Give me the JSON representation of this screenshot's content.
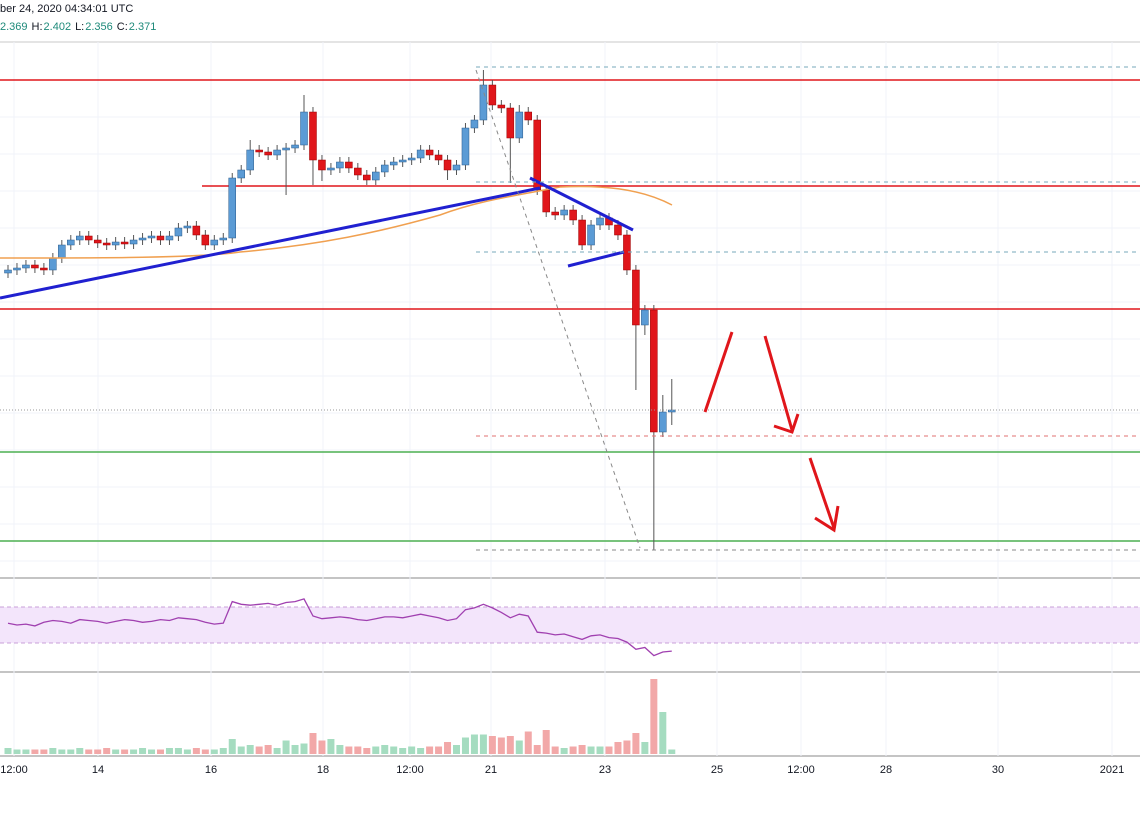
{
  "chart_data": {
    "type": "candlestick",
    "header": "ber 24, 2020 04:34:01 UTC",
    "ohlc_labels": [
      "H:",
      "L:",
      "C:"
    ],
    "open": [
      2.508,
      2.511,
      2.513,
      2.516,
      2.513,
      2.511,
      2.523,
      2.536,
      2.541,
      2.545,
      2.541,
      2.538,
      2.536,
      2.539,
      2.537,
      2.541,
      2.543,
      2.545,
      2.541,
      2.545,
      2.553,
      2.555,
      2.546,
      2.536,
      2.541,
      2.543,
      2.603,
      2.611,
      2.631,
      2.629,
      2.626,
      2.631,
      2.633,
      2.636,
      2.669,
      2.621,
      2.611,
      2.613,
      2.619,
      2.613,
      2.606,
      2.601,
      2.609,
      2.616,
      2.619,
      2.621,
      2.623,
      2.631,
      2.626,
      2.621,
      2.611,
      2.616,
      2.653,
      2.661,
      2.696,
      2.676,
      2.673,
      2.643,
      2.669,
      2.661,
      2.591,
      2.569,
      2.566,
      2.571,
      2.561,
      2.536,
      2.556,
      2.563,
      2.556,
      2.546,
      2.511,
      2.456,
      2.471,
      2.349,
      2.369
    ],
    "high": [
      2.516,
      2.518,
      2.521,
      2.521,
      2.518,
      2.528,
      2.541,
      2.546,
      2.55,
      2.55,
      2.546,
      2.543,
      2.544,
      2.544,
      2.546,
      2.548,
      2.55,
      2.55,
      2.55,
      2.558,
      2.56,
      2.56,
      2.551,
      2.546,
      2.548,
      2.608,
      2.616,
      2.641,
      2.636,
      2.634,
      2.636,
      2.638,
      2.641,
      2.686,
      2.674,
      2.626,
      2.618,
      2.624,
      2.624,
      2.618,
      2.611,
      2.614,
      2.621,
      2.624,
      2.626,
      2.628,
      2.636,
      2.636,
      2.631,
      2.626,
      2.621,
      2.658,
      2.666,
      2.711,
      2.701,
      2.681,
      2.678,
      2.676,
      2.674,
      2.666,
      2.596,
      2.574,
      2.576,
      2.576,
      2.566,
      2.561,
      2.568,
      2.568,
      2.561,
      2.551,
      2.516,
      2.476,
      2.476,
      2.386,
      2.402
    ],
    "low": [
      2.503,
      2.506,
      2.508,
      2.508,
      2.506,
      2.506,
      2.518,
      2.531,
      2.536,
      2.536,
      2.533,
      2.531,
      2.531,
      2.532,
      2.532,
      2.536,
      2.538,
      2.536,
      2.536,
      2.54,
      2.548,
      2.541,
      2.531,
      2.531,
      2.536,
      2.538,
      2.598,
      2.606,
      2.624,
      2.621,
      2.621,
      2.586,
      2.628,
      2.631,
      2.596,
      2.6,
      2.606,
      2.608,
      2.608,
      2.601,
      2.596,
      2.596,
      2.604,
      2.611,
      2.614,
      2.616,
      2.618,
      2.621,
      2.616,
      2.601,
      2.606,
      2.611,
      2.648,
      2.656,
      2.671,
      2.668,
      2.598,
      2.638,
      2.656,
      2.586,
      2.564,
      2.561,
      2.561,
      2.556,
      2.531,
      2.531,
      2.551,
      2.551,
      2.541,
      2.506,
      2.391,
      2.446,
      2.231,
      2.344,
      2.356
    ],
    "close": [
      2.511,
      2.513,
      2.516,
      2.513,
      2.511,
      2.523,
      2.536,
      2.541,
      2.545,
      2.541,
      2.538,
      2.536,
      2.539,
      2.537,
      2.541,
      2.543,
      2.545,
      2.541,
      2.545,
      2.553,
      2.555,
      2.546,
      2.536,
      2.541,
      2.543,
      2.603,
      2.611,
      2.631,
      2.629,
      2.626,
      2.631,
      2.633,
      2.636,
      2.669,
      2.621,
      2.611,
      2.613,
      2.619,
      2.613,
      2.606,
      2.601,
      2.609,
      2.616,
      2.619,
      2.621,
      2.623,
      2.631,
      2.626,
      2.621,
      2.611,
      2.616,
      2.653,
      2.661,
      2.696,
      2.676,
      2.673,
      2.643,
      2.669,
      2.661,
      2.591,
      2.569,
      2.566,
      2.571,
      2.561,
      2.536,
      2.556,
      2.563,
      2.556,
      2.546,
      2.511,
      2.456,
      2.471,
      2.349,
      2.369,
      2.371
    ],
    "up_color": "#5b9bd5",
    "down_color": "#e0161b",
    "ylim": [
      2.203,
      2.739
    ],
    "levels": [
      {
        "value": 2.701,
        "color": "#e0161b"
      },
      {
        "value": 2.595,
        "color": "#e0161b"
      },
      {
        "value": 2.472,
        "color": "#e0161b"
      },
      {
        "value": 2.329,
        "color": "#4caf50"
      },
      {
        "value": 2.24,
        "color": "#4caf50"
      }
    ],
    "rsi": [
      52,
      50,
      51,
      49,
      53,
      55,
      54,
      52,
      56,
      55,
      54,
      52,
      54,
      56,
      55,
      53,
      54,
      56,
      55,
      58,
      57,
      56,
      53,
      51,
      52,
      76,
      73,
      72,
      73,
      74,
      72,
      75,
      76,
      79,
      60,
      57,
      58,
      59,
      58,
      56,
      55,
      57,
      59,
      59,
      58,
      60,
      62,
      60,
      58,
      55,
      57,
      67,
      69,
      73,
      69,
      64,
      58,
      62,
      60,
      42,
      41,
      39,
      40,
      37,
      34,
      38,
      39,
      36,
      35,
      31,
      23,
      25,
      16,
      20,
      21
    ],
    "rsi_ylim": [
      0,
      100
    ],
    "rsi_band": [
      30,
      70
    ],
    "volume": [
      4,
      3,
      3,
      3,
      3,
      4,
      3,
      3,
      4,
      3,
      3,
      4,
      3,
      3,
      3,
      4,
      3,
      3,
      4,
      4,
      3,
      4,
      3,
      3,
      4,
      10,
      5,
      6,
      5,
      6,
      4,
      9,
      6,
      7,
      14,
      9,
      10,
      6,
      5,
      5,
      4,
      5,
      6,
      5,
      4,
      5,
      4,
      5,
      5,
      8,
      6,
      11,
      13,
      13,
      12,
      11,
      12,
      9,
      15,
      6,
      16,
      5,
      4,
      5,
      6,
      5,
      5,
      5,
      8,
      9,
      14,
      8,
      50,
      28,
      3
    ],
    "volume_max": 52,
    "x_labels": [
      "12:00",
      "14",
      "16",
      "18",
      "12:00",
      "21",
      "23",
      "25",
      "12:00",
      "28",
      "30",
      "2021"
    ]
  }
}
